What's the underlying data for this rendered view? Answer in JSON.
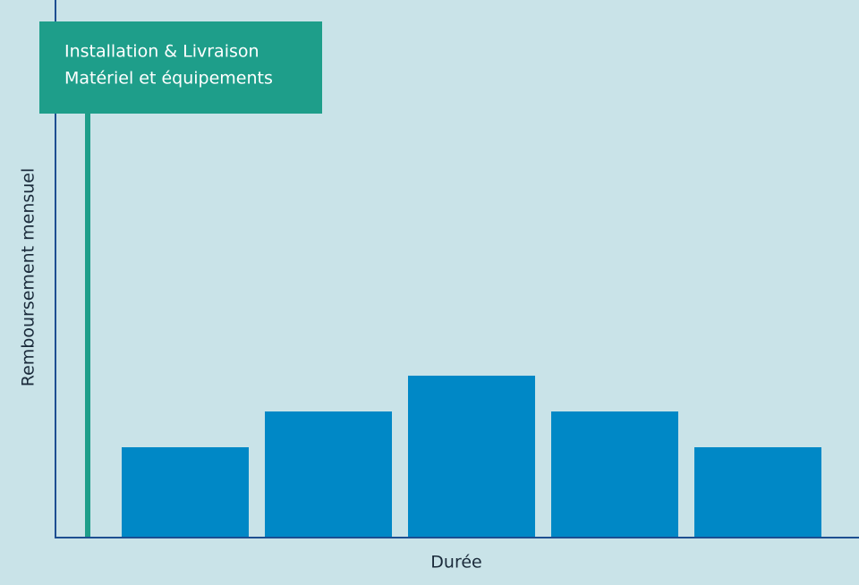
{
  "chart_data": {
    "type": "bar",
    "annotation": [
      "Installation & Livraison",
      "Matériel et équipements"
    ],
    "ylabel": "Remboursement mensuel",
    "xlabel": "Durée",
    "categories": [
      null,
      null,
      null,
      null,
      null
    ],
    "values": [
      100,
      140,
      180,
      140,
      100
    ],
    "color": "#0088c6",
    "ylim": [
      0,
      600
    ]
  }
}
